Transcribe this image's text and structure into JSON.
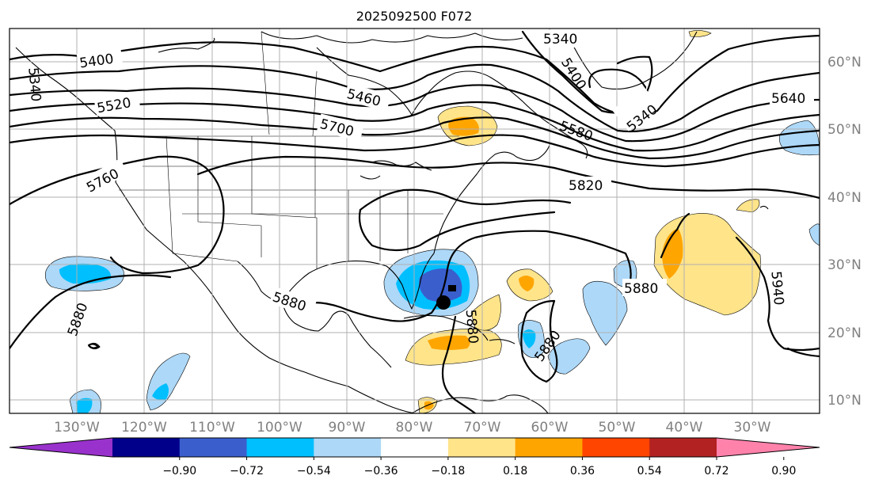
{
  "title": "2025092500 F072",
  "lat_labels": [
    "60°N",
    "50°N",
    "40°N",
    "30°N",
    "20°N",
    "10°N"
  ],
  "lon_labels": [
    "130°W",
    "120°W",
    "110°W",
    "100°W",
    "90°W",
    "80°W",
    "70°W",
    "60°W",
    "50°W",
    "40°W",
    "30°W"
  ],
  "contour_labels": [
    "5340",
    "5340",
    "5340",
    "5400",
    "5400",
    "5460",
    "5520",
    "5580",
    "5640",
    "5700",
    "5760",
    "5820",
    "5880",
    "5880",
    "5880",
    "5880",
    "5880",
    "5940"
  ],
  "colorbar": {
    "ticks": [
      "−0.90",
      "−0.72",
      "−0.54",
      "−0.36",
      "−0.18",
      "0.18",
      "0.36",
      "0.54",
      "0.72",
      "0.90"
    ],
    "colors": [
      "#9932cc",
      "#00008b",
      "#3a5fcd",
      "#00bfff",
      "#add8f8",
      "#ffffff",
      "#ffe48a",
      "#ffa500",
      "#ff4500",
      "#b22222",
      "#ff82ab"
    ]
  },
  "marker": {
    "name": "storm-center"
  }
}
